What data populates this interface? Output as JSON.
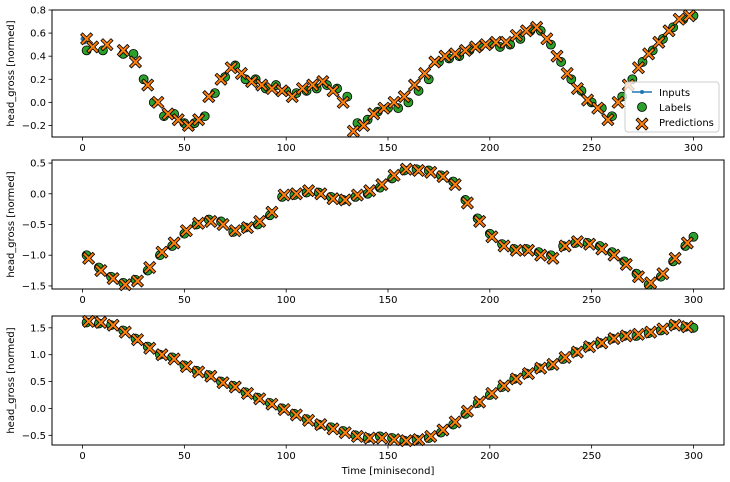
{
  "chart_data": [
    {
      "type": "scatter",
      "ylabel": "head_gross [normed]",
      "xlabel": "",
      "xlim": [
        -15,
        315
      ],
      "ylim": [
        -0.3,
        0.8
      ],
      "xticks": [
        0,
        50,
        100,
        150,
        200,
        250,
        300
      ],
      "yticks": [
        -0.2,
        0.0,
        0.2,
        0.4,
        0.6,
        0.8
      ],
      "ytick_labels": [
        "−0.2",
        "0.0",
        "0.2",
        "0.4",
        "0.6",
        "0.8"
      ],
      "legend": {
        "placement": "lower-right",
        "entries": [
          "Inputs",
          "Labels",
          "Predictions"
        ]
      },
      "inputs": {
        "x": [
          0,
          1
        ],
        "y": [
          0.55,
          0.52
        ]
      },
      "series": [
        {
          "name": "Labels",
          "x": [
            2,
            10,
            20,
            25,
            30,
            35,
            40,
            45,
            50,
            55,
            60,
            65,
            70,
            75,
            80,
            85,
            90,
            95,
            100,
            105,
            110,
            115,
            120,
            125,
            130,
            135,
            140,
            145,
            150,
            155,
            160,
            165,
            170,
            175,
            180,
            185,
            190,
            195,
            200,
            205,
            210,
            215,
            220,
            225,
            230,
            235,
            240,
            245,
            250,
            255,
            260,
            265,
            270,
            275,
            280,
            285,
            290,
            295,
            300
          ],
          "y": [
            0.45,
            0.45,
            0.42,
            0.42,
            0.2,
            0.0,
            -0.12,
            -0.1,
            -0.18,
            -0.18,
            -0.12,
            0.08,
            0.22,
            0.32,
            0.2,
            0.2,
            0.12,
            0.15,
            0.1,
            0.08,
            0.1,
            0.12,
            0.15,
            0.12,
            0.05,
            -0.18,
            -0.15,
            -0.08,
            -0.05,
            -0.05,
            0.0,
            0.1,
            0.2,
            0.35,
            0.38,
            0.4,
            0.45,
            0.48,
            0.5,
            0.48,
            0.5,
            0.55,
            0.62,
            0.62,
            0.5,
            0.35,
            0.2,
            0.1,
            0.0,
            -0.05,
            -0.12,
            0.05,
            0.2,
            0.35,
            0.45,
            0.55,
            0.65,
            0.72,
            0.75
          ]
        },
        {
          "name": "Predictions",
          "x": [
            2,
            5,
            12,
            20,
            26,
            32,
            37,
            42,
            47,
            52,
            57,
            62,
            68,
            73,
            78,
            83,
            88,
            93,
            98,
            103,
            108,
            113,
            118,
            123,
            128,
            133,
            138,
            143,
            148,
            153,
            158,
            163,
            168,
            173,
            178,
            183,
            188,
            193,
            198,
            203,
            208,
            213,
            218,
            223,
            228,
            233,
            238,
            243,
            248,
            253,
            258,
            263,
            268,
            273,
            278,
            283,
            288,
            293,
            298
          ],
          "y": [
            0.55,
            0.48,
            0.5,
            0.45,
            0.35,
            0.15,
            0.0,
            -0.1,
            -0.15,
            -0.2,
            -0.15,
            0.05,
            0.2,
            0.3,
            0.25,
            0.18,
            0.15,
            0.12,
            0.1,
            0.05,
            0.12,
            0.15,
            0.18,
            0.1,
            0.0,
            -0.25,
            -0.2,
            -0.1,
            -0.05,
            0.0,
            0.05,
            0.15,
            0.25,
            0.35,
            0.4,
            0.42,
            0.45,
            0.48,
            0.5,
            0.52,
            0.52,
            0.58,
            0.62,
            0.65,
            0.55,
            0.4,
            0.25,
            0.12,
            0.02,
            -0.05,
            -0.15,
            0.0,
            0.15,
            0.3,
            0.42,
            0.52,
            0.62,
            0.72,
            0.75
          ]
        }
      ]
    },
    {
      "type": "scatter",
      "ylabel": "head_gross [normed]",
      "xlabel": "",
      "xlim": [
        -15,
        315
      ],
      "ylim": [
        -1.55,
        0.55
      ],
      "xticks": [
        0,
        50,
        100,
        150,
        200,
        250,
        300
      ],
      "yticks": [
        -1.5,
        -1.0,
        -0.5,
        0.0,
        0.5
      ],
      "ytick_labels": [
        "−1.5",
        "−1.0",
        "−0.5",
        "0.0",
        "0.5"
      ],
      "series": [
        {
          "name": "Labels",
          "x": [
            2,
            8,
            14,
            20,
            26,
            32,
            38,
            44,
            50,
            56,
            62,
            68,
            74,
            80,
            86,
            92,
            98,
            104,
            110,
            116,
            122,
            128,
            134,
            140,
            146,
            152,
            158,
            164,
            170,
            176,
            182,
            188,
            194,
            200,
            206,
            212,
            218,
            224,
            230,
            236,
            242,
            248,
            254,
            260,
            266,
            272,
            278,
            284,
            290,
            296,
            300
          ],
          "y": [
            -1.0,
            -1.2,
            -1.35,
            -1.45,
            -1.4,
            -1.25,
            -1.0,
            -0.85,
            -0.65,
            -0.5,
            -0.42,
            -0.45,
            -0.62,
            -0.55,
            -0.5,
            -0.35,
            -0.05,
            -0.02,
            0.02,
            0.02,
            -0.05,
            -0.1,
            -0.05,
            0.0,
            0.1,
            0.25,
            0.38,
            0.4,
            0.38,
            0.3,
            0.2,
            -0.1,
            -0.4,
            -0.65,
            -0.82,
            -0.9,
            -0.9,
            -0.95,
            -1.0,
            -0.85,
            -0.8,
            -0.8,
            -0.85,
            -0.95,
            -1.1,
            -1.3,
            -1.48,
            -1.35,
            -1.1,
            -0.85,
            -0.7
          ]
        },
        {
          "name": "Predictions",
          "x": [
            3,
            9,
            15,
            21,
            27,
            33,
            39,
            45,
            51,
            57,
            63,
            69,
            75,
            81,
            87,
            93,
            99,
            105,
            111,
            117,
            123,
            129,
            135,
            141,
            147,
            153,
            159,
            165,
            171,
            177,
            183,
            189,
            195,
            201,
            207,
            213,
            219,
            225,
            231,
            237,
            243,
            249,
            255,
            261,
            267,
            273,
            279,
            285,
            291,
            297
          ],
          "y": [
            -1.05,
            -1.25,
            -1.38,
            -1.48,
            -1.42,
            -1.2,
            -0.95,
            -0.8,
            -0.6,
            -0.48,
            -0.45,
            -0.5,
            -0.6,
            -0.55,
            -0.45,
            -0.3,
            -0.02,
            0.0,
            0.05,
            0.0,
            -0.08,
            -0.1,
            -0.02,
            0.05,
            0.15,
            0.3,
            0.4,
            0.38,
            0.35,
            0.28,
            0.15,
            -0.15,
            -0.45,
            -0.7,
            -0.85,
            -0.92,
            -0.92,
            -1.0,
            -1.05,
            -0.85,
            -0.78,
            -0.82,
            -0.9,
            -1.0,
            -1.15,
            -1.35,
            -1.45,
            -1.3,
            -1.05,
            -0.8
          ]
        }
      ]
    },
    {
      "type": "scatter",
      "ylabel": "head_gross [normed]",
      "xlabel": "Time [minisecond]",
      "xlim": [
        -15,
        315
      ],
      "ylim": [
        -0.68,
        1.72
      ],
      "xticks": [
        0,
        50,
        100,
        150,
        200,
        250,
        300
      ],
      "yticks": [
        -0.5,
        0.0,
        0.5,
        1.0,
        1.5
      ],
      "ytick_labels": [
        "−0.5",
        "0.0",
        "0.5",
        "1.0",
        "1.5"
      ],
      "series": [
        {
          "name": "Labels",
          "x": [
            2,
            8,
            14,
            20,
            26,
            32,
            38,
            44,
            50,
            56,
            62,
            68,
            74,
            80,
            86,
            92,
            98,
            104,
            110,
            116,
            122,
            128,
            134,
            140,
            146,
            152,
            158,
            164,
            170,
            176,
            182,
            188,
            194,
            200,
            206,
            212,
            218,
            224,
            230,
            236,
            242,
            248,
            254,
            260,
            266,
            272,
            278,
            284,
            290,
            296,
            300
          ],
          "y": [
            1.6,
            1.58,
            1.55,
            1.45,
            1.3,
            1.15,
            1.0,
            0.95,
            0.8,
            0.7,
            0.62,
            0.5,
            0.42,
            0.3,
            0.2,
            0.1,
            0.0,
            -0.1,
            -0.2,
            -0.3,
            -0.35,
            -0.42,
            -0.5,
            -0.55,
            -0.52,
            -0.55,
            -0.6,
            -0.58,
            -0.55,
            -0.45,
            -0.3,
            -0.1,
            0.1,
            0.25,
            0.4,
            0.55,
            0.65,
            0.75,
            0.8,
            0.92,
            1.05,
            1.15,
            1.22,
            1.3,
            1.35,
            1.35,
            1.4,
            1.45,
            1.55,
            1.52,
            1.5
          ]
        },
        {
          "name": "Predictions",
          "x": [
            3,
            9,
            15,
            21,
            27,
            33,
            39,
            45,
            51,
            57,
            63,
            69,
            75,
            81,
            87,
            93,
            99,
            105,
            111,
            117,
            123,
            129,
            135,
            141,
            147,
            153,
            159,
            165,
            171,
            177,
            183,
            189,
            195,
            201,
            207,
            213,
            219,
            225,
            231,
            237,
            243,
            249,
            255,
            261,
            267,
            273,
            279,
            285,
            291,
            297
          ],
          "y": [
            1.62,
            1.6,
            1.55,
            1.42,
            1.28,
            1.12,
            1.0,
            0.92,
            0.78,
            0.68,
            0.6,
            0.48,
            0.4,
            0.28,
            0.18,
            0.08,
            -0.02,
            -0.12,
            -0.22,
            -0.3,
            -0.38,
            -0.45,
            -0.52,
            -0.55,
            -0.55,
            -0.58,
            -0.6,
            -0.58,
            -0.52,
            -0.4,
            -0.25,
            -0.05,
            0.12,
            0.28,
            0.42,
            0.55,
            0.65,
            0.75,
            0.82,
            0.95,
            1.05,
            1.15,
            1.22,
            1.3,
            1.35,
            1.38,
            1.42,
            1.48,
            1.55,
            1.52
          ]
        }
      ]
    }
  ]
}
